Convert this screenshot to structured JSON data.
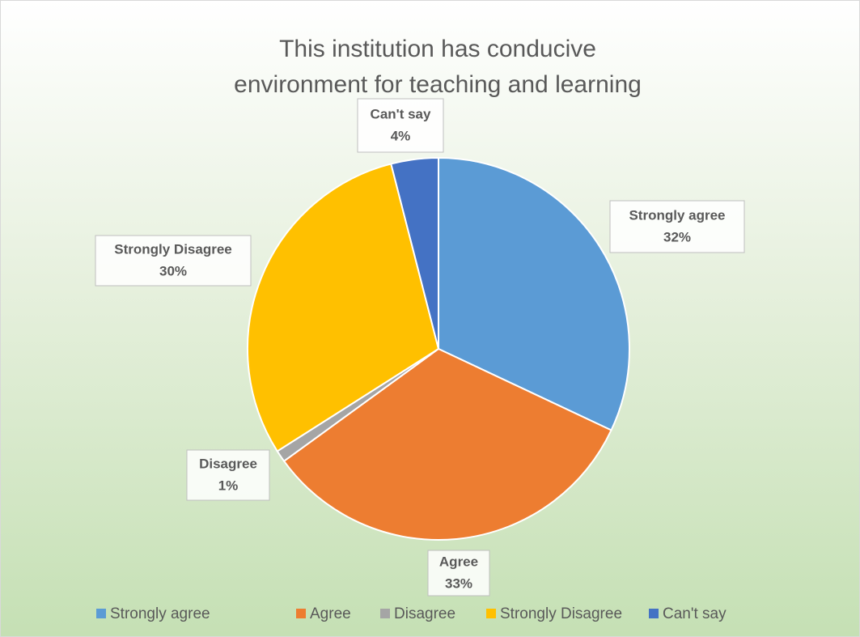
{
  "chart_data": {
    "type": "pie",
    "title": "This institution has conducive environment for teaching and learning",
    "categories": [
      "Strongly agree",
      "Agree",
      "Disagree",
      "Strongly Disagree",
      "Can't say"
    ],
    "values": [
      32,
      33,
      1,
      30,
      4
    ],
    "value_labels": [
      "32%",
      "33%",
      "1%",
      "30%",
      "4%"
    ],
    "colors": [
      "#5b9bd5",
      "#ed7d31",
      "#a5a5a5",
      "#ffc000",
      "#4472c4"
    ],
    "legend": "bottom"
  }
}
